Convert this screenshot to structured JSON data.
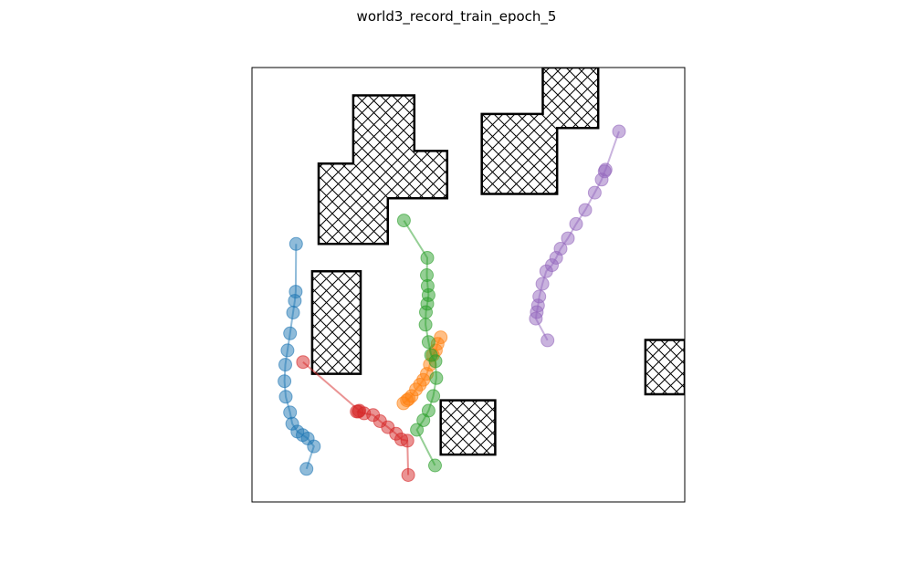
{
  "chart_data": {
    "type": "scatter",
    "title": "world3_record_train_epoch_5",
    "xlabel": "",
    "ylabel": "",
    "xlim": [
      0,
      100
    ],
    "ylim": [
      0,
      100
    ],
    "grid": false,
    "legend": "none",
    "ticks": "hidden",
    "obstacles": [
      {
        "name": "obstacle-cross",
        "polygon": [
          [
            23.4,
            93.6
          ],
          [
            37.5,
            93.6
          ],
          [
            37.5,
            80.8
          ],
          [
            45.1,
            80.8
          ],
          [
            45.1,
            69.9
          ],
          [
            31.4,
            69.9
          ],
          [
            31.4,
            59.4
          ],
          [
            15.4,
            59.4
          ],
          [
            15.4,
            77.9
          ],
          [
            23.4,
            77.9
          ]
        ]
      },
      {
        "name": "obstacle-l-shape",
        "polygon": [
          [
            67.2,
            100
          ],
          [
            80.0,
            100
          ],
          [
            80.0,
            86.1
          ],
          [
            70.5,
            86.1
          ],
          [
            70.5,
            70.9
          ],
          [
            53.1,
            70.9
          ],
          [
            53.1,
            89.3
          ],
          [
            67.2,
            89.3
          ]
        ]
      },
      {
        "name": "obstacle-left-tall",
        "polygon": [
          [
            13.9,
            53.1
          ],
          [
            25.1,
            53.1
          ],
          [
            25.1,
            29.5
          ],
          [
            13.9,
            29.5
          ]
        ]
      },
      {
        "name": "obstacle-small",
        "polygon": [
          [
            43.6,
            23.4
          ],
          [
            56.2,
            23.4
          ],
          [
            56.2,
            10.9
          ],
          [
            43.6,
            10.9
          ]
        ]
      },
      {
        "name": "obstacle-right-edge",
        "polygon": [
          [
            90.9,
            37.3
          ],
          [
            100,
            37.3
          ],
          [
            100,
            24.8
          ],
          [
            90.9,
            24.8
          ]
        ]
      }
    ],
    "series": [
      {
        "color": "#1f77b4",
        "points": [
          [
            10.2,
            59.4
          ],
          [
            10.1,
            48.4
          ],
          [
            9.9,
            46.3
          ],
          [
            9.5,
            43.6
          ],
          [
            8.8,
            38.8
          ],
          [
            8.2,
            34.9
          ],
          [
            7.7,
            31.6
          ],
          [
            7.5,
            27.8
          ],
          [
            7.8,
            24.2
          ],
          [
            8.8,
            20.6
          ],
          [
            9.3,
            18.0
          ],
          [
            10.5,
            16.2
          ],
          [
            11.7,
            15.4
          ],
          [
            12.9,
            14.6
          ],
          [
            14.3,
            12.8
          ],
          [
            12.6,
            7.6
          ]
        ]
      },
      {
        "color": "#ff7f0e",
        "points": [
          [
            43.6,
            37.9
          ],
          [
            42.9,
            36.4
          ],
          [
            42.5,
            34.9
          ],
          [
            41.8,
            33.8
          ],
          [
            41.1,
            31.6
          ],
          [
            40.4,
            29.5
          ],
          [
            39.6,
            28.1
          ],
          [
            38.8,
            27.0
          ],
          [
            37.9,
            25.9
          ],
          [
            36.9,
            24.4
          ],
          [
            36.2,
            23.7
          ],
          [
            35.8,
            23.4
          ],
          [
            35.0,
            22.7
          ]
        ]
      },
      {
        "color": "#2ca02c",
        "points": [
          [
            35.1,
            64.8
          ],
          [
            40.5,
            56.2
          ],
          [
            40.4,
            52.2
          ],
          [
            40.6,
            49.7
          ],
          [
            40.8,
            47.6
          ],
          [
            40.5,
            45.6
          ],
          [
            40.2,
            43.7
          ],
          [
            40.1,
            40.8
          ],
          [
            40.8,
            36.8
          ],
          [
            41.4,
            33.8
          ],
          [
            42.4,
            32.4
          ],
          [
            42.6,
            28.5
          ],
          [
            41.9,
            24.4
          ],
          [
            40.8,
            21.0
          ],
          [
            39.6,
            18.8
          ],
          [
            38.1,
            16.6
          ],
          [
            42.3,
            8.4
          ]
        ]
      },
      {
        "color": "#d62728",
        "points": [
          [
            11.8,
            32.2
          ],
          [
            24.8,
            21.0
          ],
          [
            24.6,
            20.8
          ],
          [
            24.2,
            20.8
          ],
          [
            25.9,
            20.4
          ],
          [
            28.0,
            20.0
          ],
          [
            29.6,
            18.6
          ],
          [
            31.4,
            17.2
          ],
          [
            33.3,
            15.7
          ],
          [
            34.5,
            14.4
          ],
          [
            35.9,
            14.1
          ],
          [
            36.1,
            6.2
          ]
        ]
      },
      {
        "color": "#9467bd",
        "points": [
          [
            84.8,
            85.3
          ],
          [
            81.7,
            76.5
          ],
          [
            81.5,
            76.1
          ],
          [
            80.8,
            74.2
          ],
          [
            79.2,
            71.2
          ],
          [
            77.0,
            67.2
          ],
          [
            74.9,
            64.0
          ],
          [
            73.0,
            60.7
          ],
          [
            71.3,
            58.3
          ],
          [
            70.3,
            56.2
          ],
          [
            69.3,
            54.5
          ],
          [
            68.0,
            53.1
          ],
          [
            67.1,
            50.2
          ],
          [
            66.4,
            47.3
          ],
          [
            66.1,
            45.2
          ],
          [
            65.8,
            43.7
          ],
          [
            65.6,
            42.2
          ],
          [
            68.3,
            37.2
          ]
        ]
      }
    ]
  }
}
